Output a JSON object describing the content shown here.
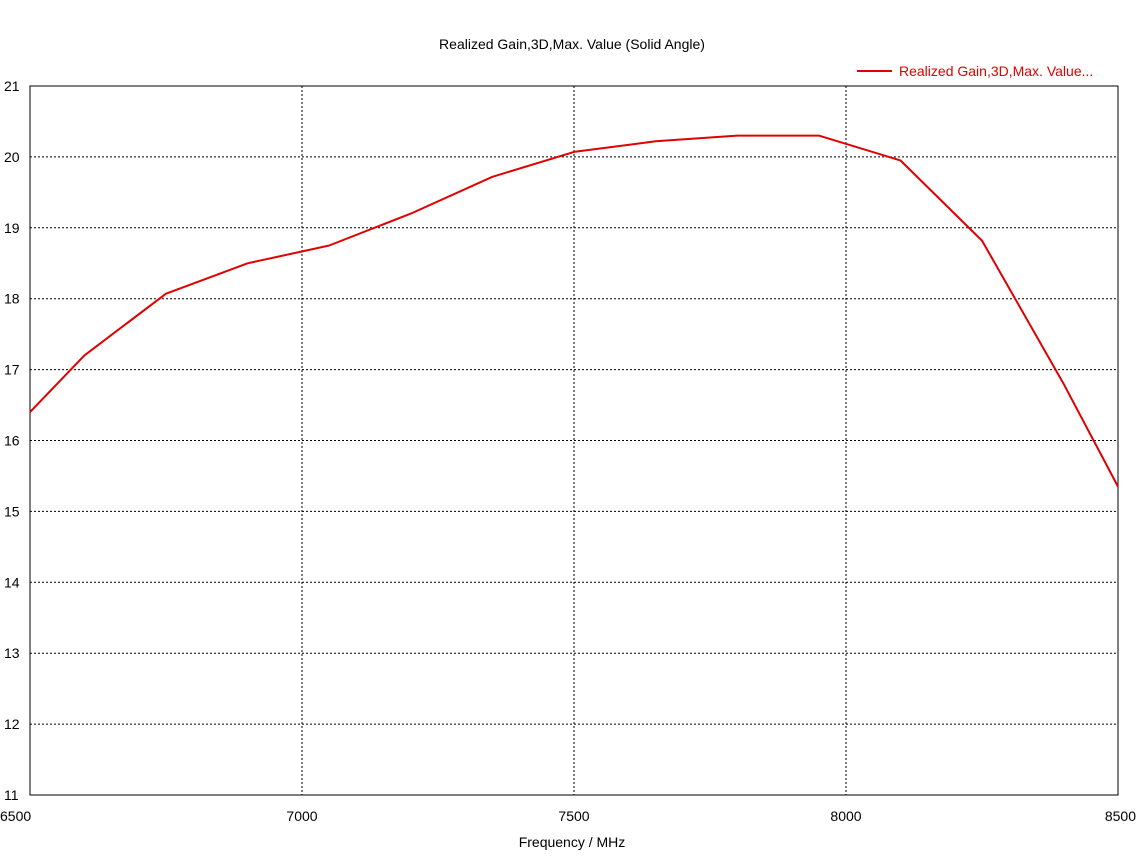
{
  "chart_data": {
    "type": "line",
    "title": "Realized Gain,3D,Max. Value (Solid Angle)",
    "xlabel": "Frequency / MHz",
    "ylabel": "",
    "xlim": [
      6500,
      8500
    ],
    "ylim": [
      11,
      21
    ],
    "xticks": [
      6500,
      7000,
      7500,
      8000,
      8500
    ],
    "yticks": [
      11,
      12,
      13,
      14,
      15,
      16,
      17,
      18,
      19,
      20,
      21
    ],
    "grid": true,
    "grid_style": "dotted",
    "legend_position": "top-right",
    "series": [
      {
        "name": "Realized Gain,3D,Max. Value...",
        "color": "#e00000",
        "x": [
          6500,
          6600,
          6750,
          6900,
          7050,
          7200,
          7350,
          7500,
          7650,
          7800,
          7950,
          8100,
          8250,
          8400,
          8500
        ],
        "y": [
          16.4,
          17.2,
          18.07,
          18.5,
          18.75,
          19.2,
          19.72,
          20.07,
          20.22,
          20.3,
          20.3,
          19.95,
          18.82,
          16.8,
          15.35
        ]
      }
    ]
  }
}
